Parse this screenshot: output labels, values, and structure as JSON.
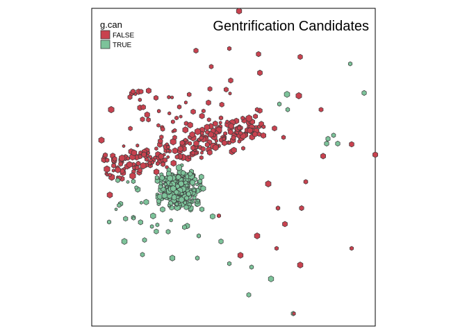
{
  "map": {
    "title": "Gentrification Candidates",
    "legend": {
      "title": "g.can",
      "items": [
        {
          "label": "FALSE",
          "color": "#c8424f"
        },
        {
          "label": "TRUE",
          "color": "#7dc39a"
        }
      ]
    },
    "symbol_outline_color": "#3a3a3a",
    "frame_color": "#000000"
  }
}
